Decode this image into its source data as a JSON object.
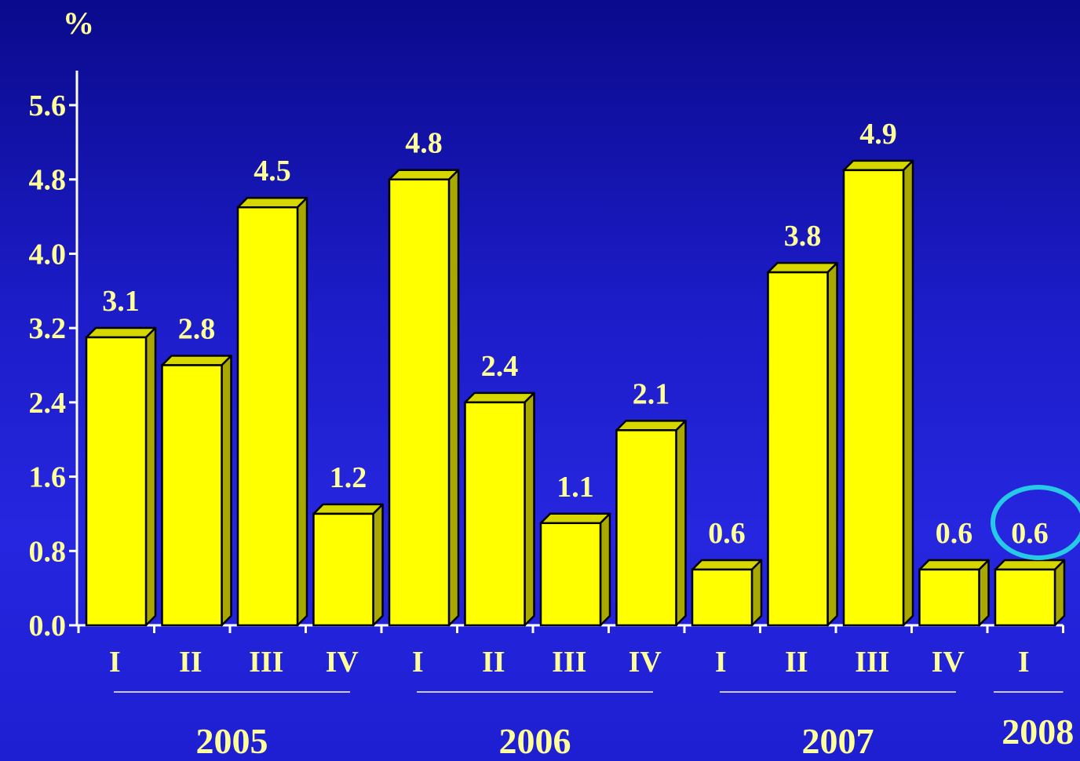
{
  "chart_data": {
    "type": "bar",
    "ylabel": "%",
    "ylim": [
      0,
      5.6
    ],
    "y_ticks": [
      "0.0",
      "0.8",
      "1.6",
      "2.4",
      "3.2",
      "4.0",
      "4.8",
      "5.6"
    ],
    "categories": [
      "I",
      "II",
      "III",
      "IV",
      "I",
      "II",
      "III",
      "IV",
      "I",
      "II",
      "III",
      "IV",
      "I"
    ],
    "values": [
      3.1,
      2.8,
      4.5,
      1.2,
      4.8,
      2.4,
      1.1,
      2.1,
      0.6,
      3.8,
      4.9,
      0.6,
      0.6
    ],
    "value_labels": [
      "3.1",
      "2.8",
      "4.5",
      "1.2",
      "4.8",
      "2.4",
      "1.1",
      "2.1",
      "0.6",
      "3.8",
      "4.9",
      "0.6",
      "0.6"
    ],
    "groups": [
      {
        "label": "2005",
        "count": 4
      },
      {
        "label": "2006",
        "count": 4
      },
      {
        "label": "2007",
        "count": 4
      },
      {
        "label": "2008",
        "count": 1
      }
    ],
    "highlighted_index": 12,
    "grid": false,
    "colors": {
      "bar_front": "#ffff00",
      "bar_top": "#d7d700",
      "bar_side": "#a8a800",
      "text": "#ffff99",
      "axis": "#ffffff",
      "highlight_ring": "#26c9e6",
      "background": "#1c1cc8"
    }
  }
}
